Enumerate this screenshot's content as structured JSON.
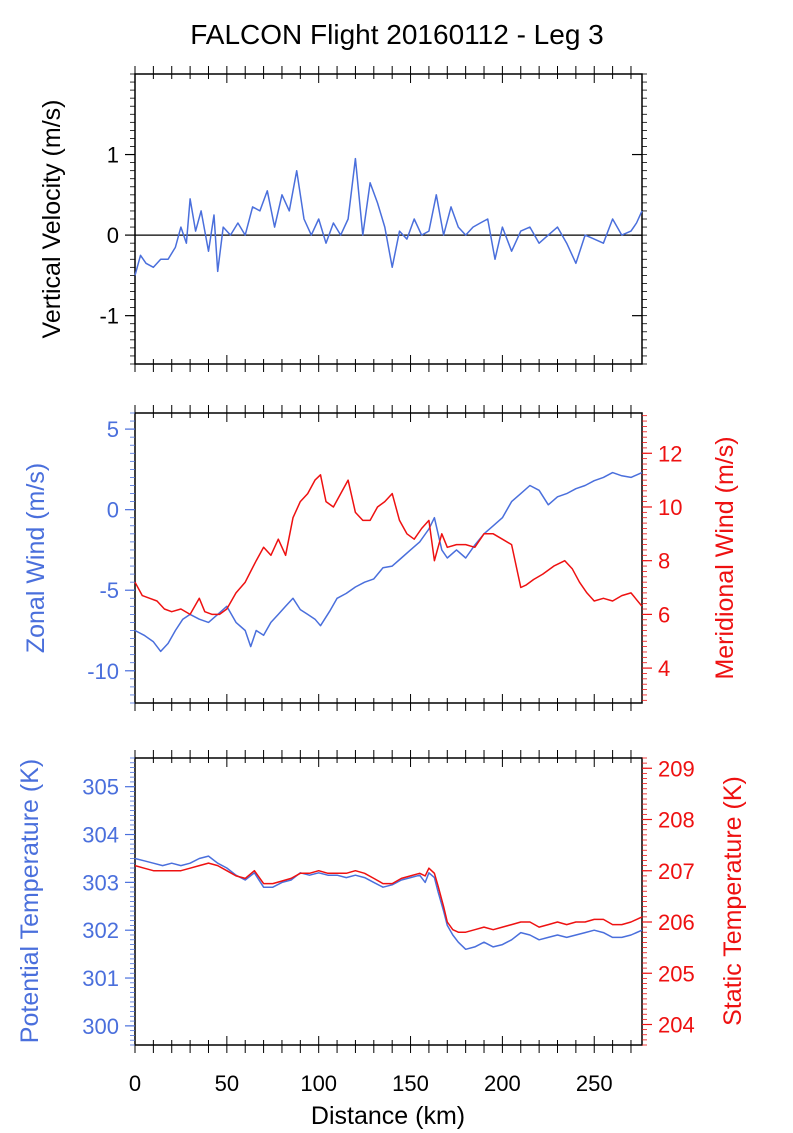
{
  "figure": {
    "title": "FALCON Flight 20160112 - Leg 3",
    "xlabel": "Distance (km)",
    "x_ticks": [
      0,
      50,
      100,
      150,
      200,
      250
    ],
    "colors": {
      "blue": "#4a6fdc",
      "red": "#ee1111",
      "black": "#000000"
    }
  },
  "chart_data": [
    {
      "type": "line",
      "panel": "vertical-velocity",
      "ylabel": "Vertical Velocity (m/s)",
      "xlim": [
        0,
        276
      ],
      "ylim": [
        -1.6,
        2.0
      ],
      "y_ticks": [
        -1,
        0,
        1
      ],
      "reference_line_y": 0,
      "series": [
        {
          "color": "#4a6fdc",
          "x": [
            0,
            3,
            6,
            10,
            14,
            18,
            22,
            25,
            28,
            30,
            33,
            36,
            40,
            43,
            45,
            48,
            52,
            56,
            60,
            64,
            68,
            72,
            76,
            80,
            84,
            88,
            92,
            96,
            100,
            104,
            108,
            112,
            116,
            120,
            124,
            128,
            132,
            136,
            140,
            144,
            148,
            152,
            156,
            160,
            164,
            168,
            172,
            176,
            180,
            184,
            188,
            192,
            196,
            200,
            205,
            210,
            215,
            220,
            225,
            230,
            235,
            240,
            245,
            250,
            255,
            260,
            265,
            270,
            273,
            276
          ],
          "y": [
            -0.5,
            -0.25,
            -0.35,
            -0.4,
            -0.3,
            -0.3,
            -0.15,
            0.1,
            -0.1,
            0.45,
            0.05,
            0.3,
            -0.2,
            0.25,
            -0.45,
            0.1,
            0.0,
            0.15,
            0.0,
            0.35,
            0.3,
            0.55,
            0.1,
            0.5,
            0.3,
            0.8,
            0.2,
            0.0,
            0.2,
            -0.1,
            0.15,
            0.0,
            0.2,
            0.95,
            0.0,
            0.65,
            0.4,
            0.1,
            -0.4,
            0.05,
            -0.05,
            0.2,
            0.0,
            0.05,
            0.5,
            0.0,
            0.35,
            0.1,
            0.0,
            0.1,
            0.15,
            0.2,
            -0.3,
            0.1,
            -0.2,
            0.05,
            0.1,
            -0.1,
            0.0,
            0.1,
            -0.1,
            -0.35,
            0.0,
            -0.05,
            -0.1,
            0.2,
            0.0,
            0.05,
            0.15,
            0.3
          ]
        }
      ]
    },
    {
      "type": "line",
      "panel": "wind",
      "xlim": [
        0,
        276
      ],
      "y_left": {
        "label": "Zonal Wind (m/s)",
        "lim": [
          -12,
          6
        ],
        "ticks": [
          -10,
          -5,
          0,
          5
        ],
        "color": "#4a6fdc"
      },
      "y_right": {
        "label": "Meridional Wind (m/s)",
        "lim": [
          2.7,
          13.5
        ],
        "ticks": [
          4,
          6,
          8,
          10,
          12
        ],
        "color": "#ee1111"
      },
      "series": [
        {
          "axis": "left",
          "color": "#4a6fdc",
          "x": [
            0,
            5,
            10,
            14,
            18,
            22,
            26,
            30,
            35,
            40,
            45,
            50,
            55,
            60,
            63,
            66,
            70,
            74,
            78,
            82,
            86,
            90,
            94,
            98,
            101,
            106,
            110,
            115,
            120,
            125,
            130,
            135,
            140,
            145,
            150,
            155,
            160,
            163,
            167,
            170,
            175,
            180,
            185,
            190,
            195,
            200,
            205,
            210,
            215,
            220,
            225,
            230,
            235,
            240,
            245,
            250,
            255,
            260,
            265,
            270,
            276
          ],
          "y": [
            -7.5,
            -7.8,
            -8.2,
            -8.8,
            -8.3,
            -7.5,
            -6.8,
            -6.5,
            -6.8,
            -7.0,
            -6.5,
            -6.0,
            -7.0,
            -7.5,
            -8.5,
            -7.5,
            -7.8,
            -7.0,
            -6.5,
            -6.0,
            -5.5,
            -6.2,
            -6.5,
            -6.8,
            -7.2,
            -6.3,
            -5.5,
            -5.2,
            -4.8,
            -4.5,
            -4.3,
            -3.6,
            -3.5,
            -3.0,
            -2.5,
            -2.0,
            -1.2,
            -0.5,
            -2.5,
            -3.0,
            -2.5,
            -3.0,
            -2.2,
            -1.5,
            -1.0,
            -0.5,
            0.5,
            1.0,
            1.5,
            1.2,
            0.3,
            0.8,
            1.0,
            1.3,
            1.5,
            1.8,
            2.0,
            2.3,
            2.1,
            2.0,
            2.3
          ]
        },
        {
          "axis": "right",
          "color": "#ee1111",
          "x": [
            0,
            4,
            8,
            12,
            16,
            20,
            25,
            30,
            35,
            38,
            42,
            46,
            50,
            55,
            60,
            63,
            66,
            70,
            74,
            78,
            82,
            86,
            90,
            94,
            98,
            101,
            104,
            108,
            112,
            116,
            120,
            124,
            128,
            132,
            136,
            140,
            144,
            148,
            152,
            156,
            160,
            163,
            167,
            170,
            175,
            180,
            185,
            190,
            195,
            200,
            205,
            210,
            213,
            217,
            222,
            228,
            234,
            238,
            242,
            246,
            250,
            255,
            260,
            265,
            270,
            276
          ],
          "y": [
            7.2,
            6.7,
            6.6,
            6.5,
            6.2,
            6.1,
            6.2,
            6.0,
            6.6,
            6.1,
            6.0,
            6.0,
            6.2,
            6.8,
            7.2,
            7.6,
            8.0,
            8.5,
            8.2,
            8.8,
            8.2,
            9.6,
            10.2,
            10.5,
            11.0,
            11.2,
            10.2,
            10.0,
            10.5,
            11.0,
            9.8,
            9.5,
            9.5,
            10.0,
            10.2,
            10.5,
            9.5,
            9.0,
            8.8,
            9.2,
            9.5,
            8.0,
            9.0,
            8.5,
            8.6,
            8.6,
            8.5,
            9.0,
            9.0,
            8.8,
            8.6,
            7.0,
            7.1,
            7.3,
            7.5,
            7.8,
            8.0,
            7.7,
            7.2,
            6.8,
            6.5,
            6.6,
            6.5,
            6.7,
            6.8,
            6.3
          ]
        }
      ]
    },
    {
      "type": "line",
      "panel": "temperature",
      "xlim": [
        0,
        276
      ],
      "y_left": {
        "label": "Potential Temperature (K)",
        "lim": [
          299.6,
          305.6
        ],
        "ticks": [
          300,
          301,
          302,
          303,
          304,
          305
        ],
        "color": "#4a6fdc"
      },
      "y_right": {
        "label": "Static Temperature (K)",
        "lim": [
          203.6,
          209.2
        ],
        "ticks": [
          204,
          205,
          206,
          207,
          208,
          209
        ],
        "color": "#ee1111"
      },
      "series": [
        {
          "axis": "left",
          "color": "#4a6fdc",
          "x": [
            0,
            5,
            10,
            15,
            20,
            25,
            30,
            35,
            40,
            45,
            50,
            55,
            60,
            65,
            70,
            75,
            80,
            85,
            90,
            95,
            100,
            105,
            110,
            115,
            120,
            125,
            130,
            135,
            140,
            145,
            150,
            155,
            158,
            160,
            163,
            165,
            168,
            170,
            173,
            176,
            180,
            185,
            190,
            195,
            200,
            205,
            210,
            215,
            220,
            225,
            230,
            235,
            240,
            245,
            250,
            255,
            260,
            265,
            270,
            276
          ],
          "y": [
            303.5,
            303.45,
            303.4,
            303.35,
            303.4,
            303.35,
            303.4,
            303.5,
            303.55,
            303.4,
            303.3,
            303.15,
            303.05,
            303.2,
            302.9,
            302.9,
            303.0,
            303.05,
            303.2,
            303.15,
            303.2,
            303.15,
            303.15,
            303.1,
            303.15,
            303.1,
            303.0,
            302.9,
            302.95,
            303.05,
            303.1,
            303.15,
            303.0,
            303.2,
            303.1,
            302.8,
            302.4,
            302.1,
            301.9,
            301.75,
            301.6,
            301.65,
            301.75,
            301.65,
            301.7,
            301.8,
            301.95,
            301.9,
            301.8,
            301.85,
            301.9,
            301.85,
            301.9,
            301.95,
            302.0,
            301.95,
            301.85,
            301.85,
            301.9,
            302.0
          ]
        },
        {
          "axis": "right",
          "color": "#ee1111",
          "x": [
            0,
            5,
            10,
            15,
            20,
            25,
            30,
            35,
            40,
            45,
            50,
            55,
            60,
            65,
            70,
            75,
            80,
            85,
            90,
            95,
            100,
            105,
            110,
            115,
            120,
            125,
            130,
            135,
            140,
            145,
            150,
            155,
            158,
            160,
            163,
            165,
            168,
            170,
            173,
            176,
            180,
            185,
            190,
            195,
            200,
            205,
            210,
            215,
            220,
            225,
            230,
            235,
            240,
            245,
            250,
            255,
            260,
            265,
            270,
            276
          ],
          "y": [
            207.1,
            207.05,
            207.0,
            207.0,
            207.0,
            207.0,
            207.05,
            207.1,
            207.15,
            207.1,
            207.0,
            206.9,
            206.85,
            207.0,
            206.75,
            206.75,
            206.8,
            206.85,
            206.95,
            206.95,
            207.0,
            206.95,
            206.95,
            206.95,
            207.0,
            206.95,
            206.85,
            206.75,
            206.75,
            206.85,
            206.9,
            206.95,
            206.9,
            207.05,
            206.95,
            206.7,
            206.3,
            206.0,
            205.85,
            205.8,
            205.8,
            205.85,
            205.9,
            205.85,
            205.9,
            205.95,
            206.0,
            206.0,
            205.9,
            205.95,
            206.0,
            205.95,
            206.0,
            206.0,
            206.05,
            206.05,
            205.95,
            205.95,
            206.0,
            206.1
          ]
        }
      ]
    }
  ]
}
